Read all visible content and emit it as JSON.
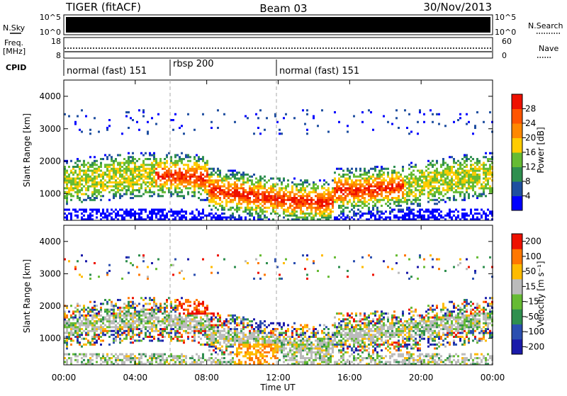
{
  "header": {
    "station": "TIGER (fitACF)",
    "beam": "Beam 03",
    "date": "30/Nov/2013"
  },
  "left_labels": {
    "nsky": "N.Sky",
    "freq_1": "Freq.",
    "freq_2": "[MHz]",
    "cpid": "CPID"
  },
  "right_labels": {
    "nsearch": "N.Search",
    "nave": "Nave"
  },
  "nsky_ticks": [
    "10^5",
    "10^0"
  ],
  "nsearch_ticks": [
    "10^5",
    "10^0"
  ],
  "freq_ticks": [
    "18",
    "8"
  ],
  "nave_ticks": [
    "60",
    "0"
  ],
  "cpid_segments": [
    "normal (fast) 151",
    "rbsp 200",
    "normal (fast) 151"
  ],
  "colors": {
    "power": [
      "#0000ff",
      "#1f4fa0",
      "#2f8f4f",
      "#66bb33",
      "#ffcc00",
      "#ff8800",
      "#ff5500",
      "#ee1100"
    ],
    "velocity": [
      "#1a1aaa",
      "#2b4fb0",
      "#2f8f4f",
      "#66bb33",
      "#bbbbbb",
      "#ffbb00",
      "#ff7700",
      "#ee1100"
    ],
    "ground_scatter": "#bbbbbb"
  },
  "chart_data": [
    {
      "type": "heatmap",
      "title": "",
      "xlabel": "",
      "ylabel": "Slant Range [km]",
      "xlim": [
        "00:00",
        "24:00"
      ],
      "ylim": [
        180,
        4500
      ],
      "x_ticks": [
        "00:00",
        "04:00",
        "08:00",
        "12:00",
        "16:00",
        "20:00",
        "00:00"
      ],
      "y_ticks": [
        "1000",
        "2000",
        "3000",
        "4000"
      ],
      "colorbar_label": "Power [dB]",
      "colorbar_ticks": [
        "4",
        "8",
        "12",
        "16",
        "20",
        "24",
        "28"
      ],
      "colorbar_range": [
        0,
        32
      ]
    },
    {
      "type": "heatmap",
      "title": "",
      "xlabel": "Time UT",
      "ylabel": "Slant Range [km]",
      "xlim": [
        "00:00",
        "24:00"
      ],
      "ylim": [
        180,
        4500
      ],
      "x_ticks": [
        "00:00",
        "04:00",
        "08:00",
        "12:00",
        "16:00",
        "20:00",
        "00:00"
      ],
      "y_ticks": [
        "1000",
        "2000",
        "3000",
        "4000"
      ],
      "colorbar_label": "Velocity [m s⁻¹]",
      "colorbar_ticks": [
        "200",
        "100",
        "50",
        "15",
        "-15",
        "-50",
        "-100",
        "-200"
      ]
    }
  ]
}
